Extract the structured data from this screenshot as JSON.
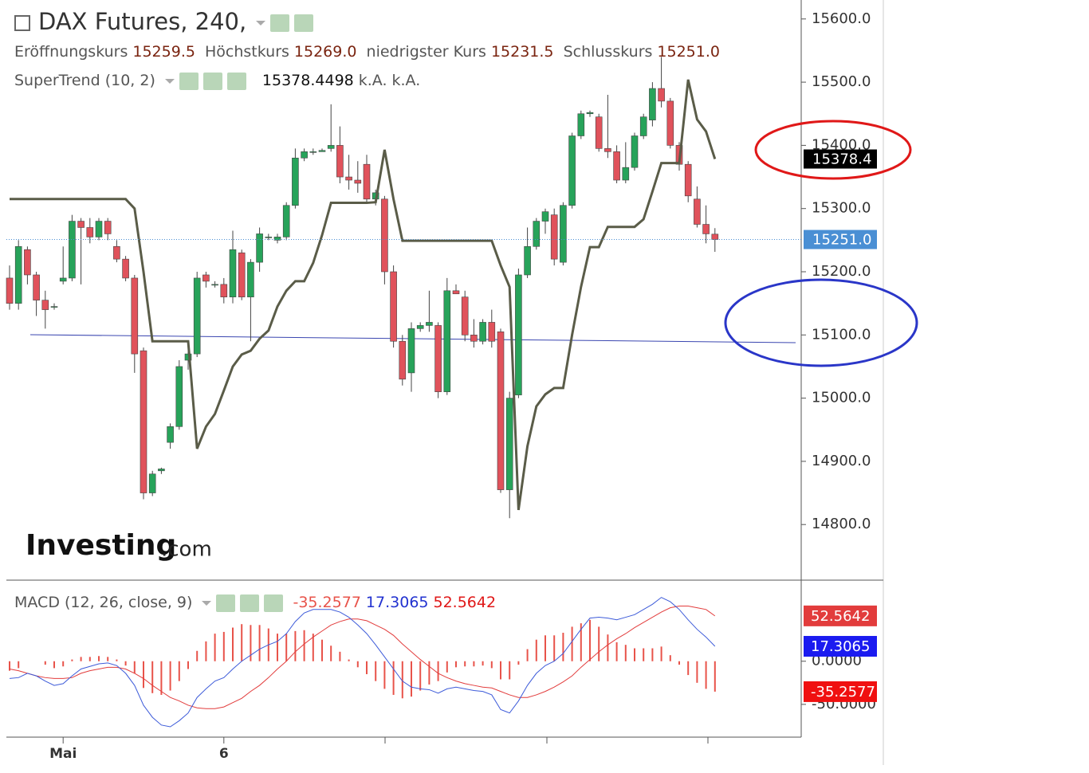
{
  "header": {
    "title": "DAX Futures, 240,",
    "ohlc": [
      {
        "label": "Eröffnungskurs",
        "value": "15259.5"
      },
      {
        "label": "Höchstkurs",
        "value": "15269.0"
      },
      {
        "label": "niedrigster Kurs",
        "value": "15231.5"
      },
      {
        "label": "Schlusskurs",
        "value": "15251.0"
      }
    ],
    "supertrend": {
      "label": "SuperTrend (10, 2)",
      "extra": [
        "k.A.",
        "k.A."
      ]
    },
    "macd": {
      "label": "MACD (12, 26, close, 9)"
    }
  },
  "logo": [
    "Investing",
    ".com"
  ],
  "chart_data": [
    {
      "type": "candlestick",
      "categories": [
        null,
        null,
        null,
        null,
        null,
        null,
        "Mai",
        null,
        null,
        null,
        null,
        null,
        null,
        null,
        null,
        null,
        null,
        null,
        null,
        null,
        null,
        null,
        null,
        null,
        "6",
        null,
        null,
        null,
        null,
        null,
        null,
        null,
        null,
        null,
        null,
        null,
        null,
        null,
        null,
        null,
        null,
        null,
        null,
        null,
        null,
        null,
        null,
        null,
        null,
        null,
        null,
        null,
        null,
        null,
        null,
        null,
        null,
        null,
        null,
        null,
        null,
        null,
        null,
        null,
        null,
        null,
        null,
        null,
        null,
        null,
        null,
        null,
        null,
        null,
        null,
        null,
        null,
        null,
        null,
        null
      ],
      "open": [
        15190,
        15150,
        15235,
        15195,
        15155,
        15145,
        15185,
        15190,
        15280,
        15270,
        15255,
        15280,
        15240,
        15220,
        15190,
        15075,
        14850,
        14885,
        14930,
        14955,
        15060,
        15070,
        15195,
        15180,
        15180,
        15160,
        15230,
        15160,
        15215,
        15255,
        15250,
        15255,
        15305,
        15380,
        15390,
        15390,
        15395,
        15400,
        15350,
        15345,
        15370,
        15315,
        15315,
        15200,
        15090,
        15040,
        15110,
        15115,
        15115,
        15010,
        15170,
        15160,
        15100,
        15090,
        15120,
        15105,
        14855,
        15005,
        15195,
        15240,
        15280,
        15290,
        15215,
        15305,
        15415,
        15450,
        15445,
        15395,
        15390,
        15345,
        15365,
        15415,
        15440,
        15490,
        15470,
        15400,
        15370,
        15315,
        15275,
        15259.5
      ],
      "high": [
        15210,
        15250,
        15240,
        15200,
        15170,
        15150,
        15240,
        15290,
        15285,
        15285,
        15285,
        15285,
        15250,
        15225,
        15195,
        15080,
        14885,
        14890,
        14960,
        15060,
        15080,
        15200,
        15200,
        15185,
        15190,
        15265,
        15235,
        15220,
        15270,
        15260,
        15260,
        15310,
        15395,
        15395,
        15395,
        15395,
        15465,
        15430,
        15385,
        15375,
        15385,
        15330,
        15320,
        15210,
        15100,
        15120,
        15120,
        15170,
        15120,
        15190,
        15180,
        15170,
        15125,
        15125,
        15140,
        15110,
        15010,
        15205,
        15270,
        15285,
        15300,
        15300,
        15310,
        15420,
        15455,
        15455,
        15450,
        15480,
        15400,
        15405,
        15420,
        15450,
        15500,
        15540,
        15475,
        15405,
        15375,
        15335,
        15305,
        15269
      ],
      "low": [
        15140,
        15140,
        15180,
        15130,
        15110,
        15140,
        15180,
        15185,
        15180,
        15245,
        15250,
        15250,
        15215,
        15185,
        15040,
        14840,
        14845,
        14880,
        14920,
        14950,
        15045,
        15065,
        15175,
        15175,
        15150,
        15150,
        15155,
        15090,
        15200,
        15250,
        15245,
        15250,
        15300,
        15375,
        15385,
        15390,
        15390,
        15340,
        15330,
        15325,
        15310,
        15305,
        15180,
        15080,
        15020,
        15010,
        15105,
        15105,
        15000,
        15005,
        15165,
        15090,
        15080,
        15085,
        15080,
        14850,
        14810,
        15000,
        15190,
        15235,
        15260,
        15210,
        15210,
        15300,
        15410,
        15445,
        15390,
        15380,
        15340,
        15340,
        15360,
        15410,
        15430,
        15460,
        15395,
        15360,
        15310,
        15270,
        15245,
        15231.5
      ],
      "close": [
        15150,
        15240,
        15195,
        15155,
        15140,
        15145,
        15190,
        15280,
        15270,
        15255,
        15280,
        15260,
        15220,
        15190,
        15070,
        14850,
        14880,
        14888,
        14955,
        15050,
        15070,
        15190,
        15185,
        15180,
        15160,
        15235,
        15160,
        15215,
        15260,
        15255,
        15255,
        15305,
        15380,
        15390,
        15390,
        15392,
        15400,
        15350,
        15345,
        15340,
        15315,
        15325,
        15200,
        15090,
        15030,
        15110,
        15115,
        15120,
        15010,
        15170,
        15165,
        15100,
        15090,
        15120,
        15090,
        14855,
        15000,
        15195,
        15240,
        15280,
        15295,
        15220,
        15305,
        15415,
        15450,
        15452,
        15395,
        15390,
        15345,
        15365,
        15415,
        15445,
        15490,
        15470,
        15400,
        15370,
        15320,
        15275,
        15260,
        15251
      ],
      "up_color": "#27a35a",
      "down_color": "#e0525b",
      "supertrend": {
        "color": "#5a5c48",
        "values": [
          15315,
          15315,
          15315,
          15315,
          15315,
          15315,
          15315,
          15315,
          15315,
          15315,
          15315,
          15315,
          15315,
          15315,
          15300,
          15200,
          15090,
          15090,
          15090,
          15090,
          15090,
          14920,
          14955,
          14975,
          15012,
          15050,
          15069,
          15075,
          15094,
          15107,
          15145,
          15170,
          15185,
          15185,
          15214,
          15258,
          15309,
          15309,
          15309,
          15309,
          15309,
          15310,
          15393,
          15315,
          15249,
          15249,
          15249,
          15249,
          15249,
          15249,
          15249,
          15249,
          15249,
          15249,
          15249,
          15210,
          15176,
          14823,
          14924,
          14987,
          15006,
          15016,
          15016,
          15100,
          15176,
          15239,
          15239,
          15271,
          15271,
          15271,
          15271,
          15283,
          15327,
          15372,
          15372,
          15372,
          15504,
          15441,
          15422,
          15378.4498
        ]
      },
      "ylim": [
        14712,
        15630
      ],
      "yticks": [
        {
          "value": 14800,
          "label": "14800.0"
        },
        {
          "value": 14900,
          "label": "14900.0"
        },
        {
          "value": 15000,
          "label": "15000.0"
        },
        {
          "value": 15100,
          "label": "15100.0"
        },
        {
          "value": 15200,
          "label": "15200.0"
        },
        {
          "value": 15300,
          "label": "15300.0"
        },
        {
          "value": 15400,
          "label": "15400.0"
        },
        {
          "value": 15500,
          "label": "15500.0"
        },
        {
          "value": 15600,
          "label": "15600.0"
        }
      ],
      "price_tags": [
        {
          "value": 15378.4,
          "label": "15378.4",
          "color": "#000000"
        },
        {
          "value": 15251.0,
          "label": "15251.0",
          "color": "#4a8fd4"
        }
      ]
    },
    {
      "type": "macd",
      "macd": {
        "color": "#3d5bd9",
        "values": [
          -20,
          -19,
          -14,
          -17,
          -23,
          -28,
          -26,
          -17,
          -9,
          -6,
          -3,
          -2,
          -5,
          -14,
          -28,
          -51,
          -65,
          -74,
          -76,
          -69,
          -60,
          -42,
          -32,
          -23,
          -19,
          -9,
          0,
          7,
          14,
          19,
          23,
          32,
          46,
          56,
          60,
          60,
          60,
          57,
          51,
          42,
          32,
          19,
          5,
          -9,
          -23,
          -30,
          -32,
          -33,
          -37,
          -32,
          -30,
          -32,
          -34,
          -35,
          -39,
          -56,
          -60,
          -46,
          -28,
          -14,
          -5,
          0,
          9,
          23,
          37,
          50,
          51,
          50,
          48,
          51,
          54,
          60,
          66,
          74,
          69,
          60,
          48,
          37,
          28,
          17.3065
        ]
      },
      "signal": {
        "color": "#e23c3c",
        "values": [
          -9,
          -11,
          -14,
          -17,
          -19,
          -20,
          -20,
          -19,
          -14,
          -11,
          -9,
          -7,
          -7,
          -9,
          -14,
          -20,
          -28,
          -35,
          -42,
          -46,
          -51,
          -54,
          -55,
          -55,
          -53,
          -48,
          -43,
          -35,
          -28,
          -19,
          -9,
          0,
          11,
          20,
          28,
          35,
          42,
          46,
          49,
          49,
          47,
          42,
          37,
          30,
          20,
          11,
          2,
          -6,
          -14,
          -19,
          -23,
          -26,
          -28,
          -30,
          -31,
          -35,
          -39,
          -42,
          -42,
          -39,
          -35,
          -30,
          -24,
          -17,
          -7,
          2,
          11,
          19,
          26,
          32,
          39,
          45,
          51,
          57,
          62,
          64,
          64,
          62,
          60,
          52.5642
        ]
      },
      "histogram": {
        "color": "#e8534a",
        "values": [
          -11,
          -8,
          0,
          0,
          -4,
          -8,
          -6,
          2,
          5,
          5,
          6,
          5,
          2,
          -5,
          -14,
          -31,
          -37,
          -39,
          -34,
          -23,
          -9,
          12,
          23,
          32,
          34,
          39,
          43,
          42,
          42,
          38,
          32,
          32,
          35,
          36,
          32,
          25,
          18,
          11,
          2,
          -7,
          -15,
          -23,
          -32,
          -39,
          -43,
          -41,
          -34,
          -27,
          -23,
          -13,
          -7,
          -6,
          -6,
          -5,
          -8,
          -21,
          -21,
          -4,
          14,
          25,
          30,
          30,
          33,
          40,
          44,
          48,
          40,
          31,
          22,
          19,
          15,
          15,
          15,
          17,
          7,
          -4,
          -16,
          -25,
          -32,
          -35.2577
        ]
      },
      "ylim": [
        -88,
        94
      ],
      "yticks": [
        {
          "value": 0,
          "label": "0.0000"
        },
        {
          "value": -50,
          "label": "-50.0000"
        }
      ]
    }
  ]
}
